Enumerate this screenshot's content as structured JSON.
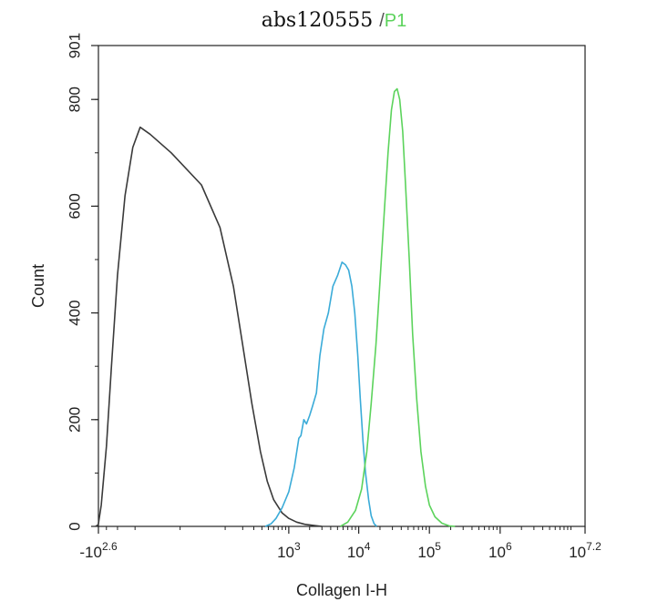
{
  "chart_data": {
    "type": "line",
    "title": "abs120555",
    "title_separator": "/",
    "title_gate": "P1",
    "xlabel": "Collagen I-H",
    "ylabel": "Count",
    "x_scale": "log",
    "x_range": [
      -398,
      15849000
    ],
    "ylim": [
      0,
      901
    ],
    "x_ticks": [
      {
        "value": -398,
        "base": "-10",
        "exp": "2.6"
      },
      {
        "value": 1000,
        "base": "10",
        "exp": "3"
      },
      {
        "value": 10000,
        "base": "10",
        "exp": "4"
      },
      {
        "value": 100000,
        "base": "10",
        "exp": "5"
      },
      {
        "value": 1000000,
        "base": "10",
        "exp": "6"
      },
      {
        "value": 15849000,
        "base": "10",
        "exp": "7.2"
      }
    ],
    "y_ticks": [
      0,
      200,
      400,
      600,
      800,
      901
    ],
    "grid": false,
    "series": [
      {
        "color": "#3a3a3a",
        "points": [
          [
            -440,
            0
          ],
          [
            -400,
            3
          ],
          [
            -360,
            40
          ],
          [
            -300,
            150
          ],
          [
            -250,
            300
          ],
          [
            -200,
            470
          ],
          [
            -150,
            620
          ],
          [
            -110,
            710
          ],
          [
            -80,
            748
          ],
          [
            -50,
            735
          ],
          [
            -10,
            700
          ],
          [
            30,
            640
          ],
          [
            80,
            560
          ],
          [
            140,
            450
          ],
          [
            200,
            340
          ],
          [
            280,
            230
          ],
          [
            380,
            140
          ],
          [
            480,
            85
          ],
          [
            600,
            50
          ],
          [
            800,
            25
          ],
          [
            1000,
            15
          ],
          [
            1300,
            8
          ],
          [
            1700,
            4
          ],
          [
            2200,
            2
          ],
          [
            3000,
            0
          ]
        ]
      },
      {
        "color": "#3aabd8",
        "points": [
          [
            450,
            0
          ],
          [
            550,
            5
          ],
          [
            650,
            15
          ],
          [
            800,
            35
          ],
          [
            1000,
            65
          ],
          [
            1200,
            110
          ],
          [
            1400,
            165
          ],
          [
            1500,
            170
          ],
          [
            1650,
            200
          ],
          [
            1800,
            192
          ],
          [
            2000,
            208
          ],
          [
            2200,
            225
          ],
          [
            2500,
            250
          ],
          [
            2800,
            320
          ],
          [
            3200,
            370
          ],
          [
            3700,
            400
          ],
          [
            4300,
            450
          ],
          [
            5000,
            470
          ],
          [
            5800,
            495
          ],
          [
            6500,
            490
          ],
          [
            7200,
            480
          ],
          [
            8000,
            450
          ],
          [
            8800,
            400
          ],
          [
            9700,
            320
          ],
          [
            10500,
            240
          ],
          [
            11500,
            160
          ],
          [
            12500,
            100
          ],
          [
            13800,
            50
          ],
          [
            15000,
            20
          ],
          [
            16500,
            5
          ],
          [
            18000,
            0
          ]
        ]
      },
      {
        "color": "#5cd35c",
        "points": [
          [
            5500,
            0
          ],
          [
            7000,
            8
          ],
          [
            9000,
            30
          ],
          [
            11000,
            70
          ],
          [
            13000,
            140
          ],
          [
            15000,
            230
          ],
          [
            17500,
            340
          ],
          [
            20000,
            460
          ],
          [
            23000,
            590
          ],
          [
            26000,
            700
          ],
          [
            29000,
            780
          ],
          [
            32000,
            815
          ],
          [
            35000,
            820
          ],
          [
            38000,
            800
          ],
          [
            42000,
            740
          ],
          [
            46000,
            640
          ],
          [
            52000,
            500
          ],
          [
            58000,
            360
          ],
          [
            66000,
            240
          ],
          [
            76000,
            140
          ],
          [
            88000,
            75
          ],
          [
            100000,
            40
          ],
          [
            120000,
            18
          ],
          [
            150000,
            6
          ],
          [
            190000,
            1
          ],
          [
            230000,
            0
          ]
        ]
      }
    ]
  }
}
